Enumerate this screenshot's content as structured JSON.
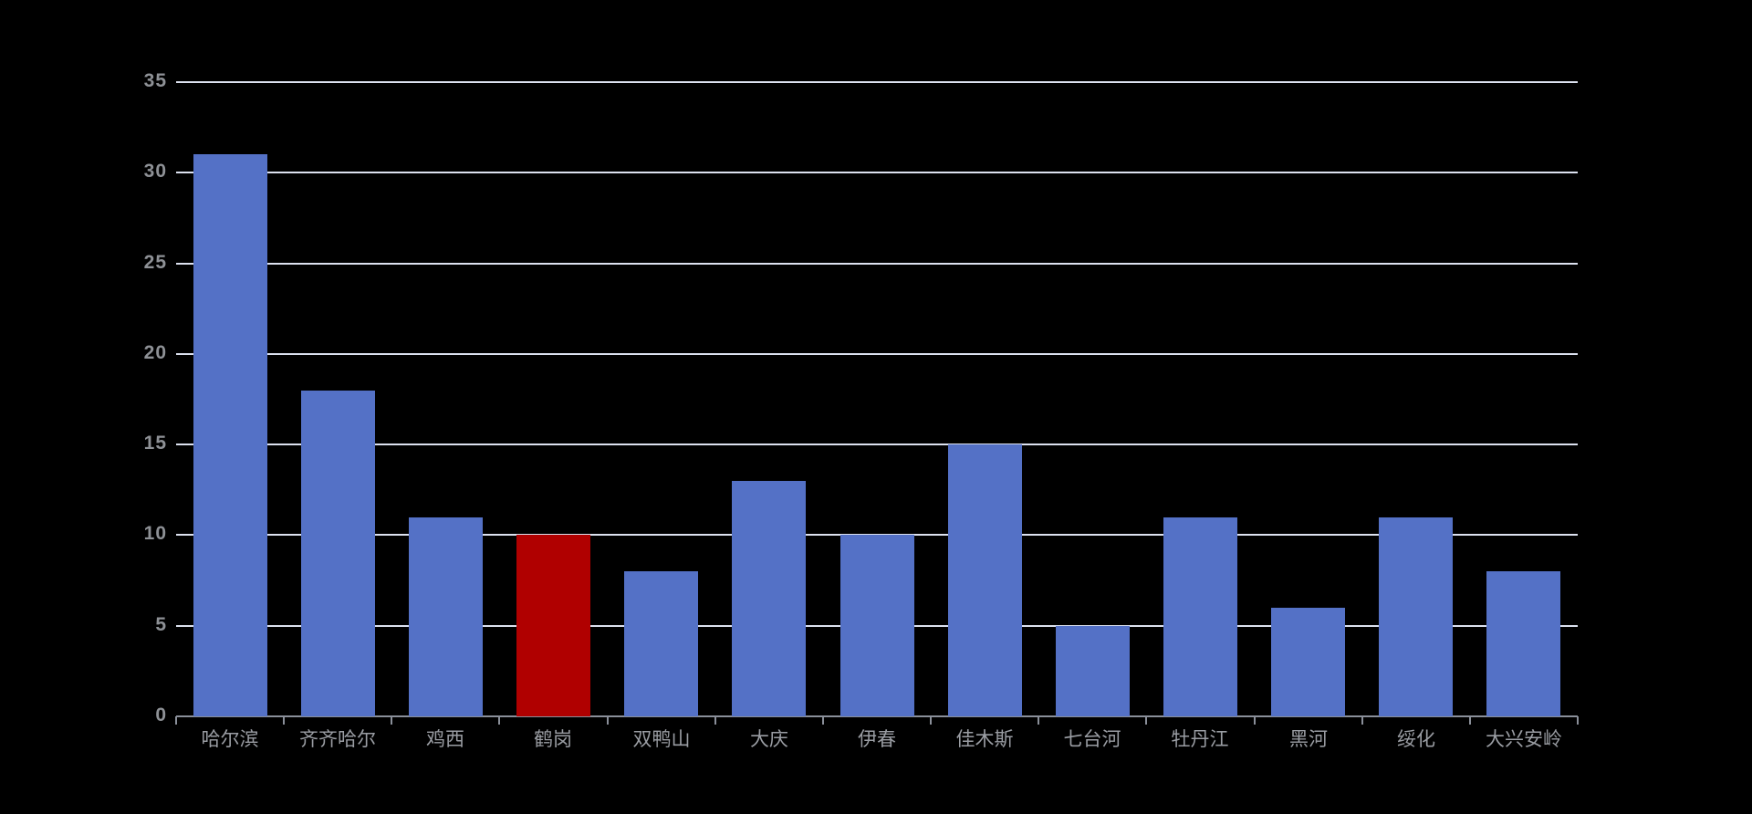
{
  "chart_data": {
    "type": "bar",
    "title": "",
    "categories": [
      "哈尔滨",
      "齐齐哈尔",
      "鸡西",
      "鹤岗",
      "双鸭山",
      "大庆",
      "伊春",
      "佳木斯",
      "七台河",
      "牡丹江",
      "黑河",
      "绥化",
      "大兴安岭"
    ],
    "values": [
      31,
      18,
      11,
      10,
      8,
      13,
      10,
      15,
      5,
      11,
      6,
      11,
      8
    ],
    "highlight_index": 3,
    "highlighted_category": "鹤岗",
    "xlabel": "",
    "ylabel": "",
    "ylim": [
      0,
      35
    ],
    "y_ticks": [
      "0",
      "5",
      "10",
      "15",
      "20",
      "25",
      "30",
      "35"
    ],
    "grid": "horizontal",
    "legend": "none",
    "colors": {
      "background": "#000000",
      "bar": "#5471C6",
      "bar_highlight": "#B00000",
      "gridline": "#DCE1EF",
      "axis_line": "#8A8F99",
      "y_tick_label": "#8E9196",
      "x_tick_label": "#9A9DA3"
    }
  }
}
